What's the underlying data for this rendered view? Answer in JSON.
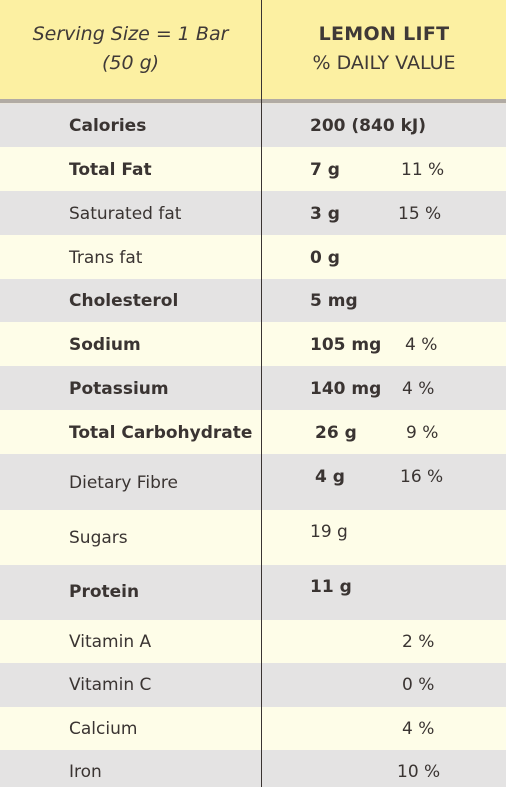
{
  "header": {
    "serving_line1": "Serving Size = 1 Bar",
    "serving_line2": "(50 g)",
    "product": "LEMON LIFT",
    "column_title": "% DAILY VALUE"
  },
  "rows": [
    {
      "label": "Calories",
      "amount": "200 (840 kJ)",
      "percent": ""
    },
    {
      "label": "Total Fat",
      "amount": "7 g",
      "percent": "11 %"
    },
    {
      "label": "Saturated fat",
      "amount": "3 g",
      "percent": "15 %"
    },
    {
      "label": "Trans fat",
      "amount": "0 g",
      "percent": ""
    },
    {
      "label": "Cholesterol",
      "amount": "5 mg",
      "percent": ""
    },
    {
      "label": "Sodium",
      "amount": "105 mg",
      "percent": "4 %"
    },
    {
      "label": "Potassium",
      "amount": "140 mg",
      "percent": "4 %"
    },
    {
      "label": "Total Carbohydrate",
      "amount": "26 g",
      "percent": "9 %"
    },
    {
      "label": "Dietary Fibre",
      "amount": "4 g",
      "percent": "16 %"
    },
    {
      "label": "Sugars",
      "amount": "19 g",
      "percent": ""
    },
    {
      "label": "Protein",
      "amount": "11 g",
      "percent": ""
    },
    {
      "label": "Vitamin A",
      "amount": "",
      "percent": "2 %"
    },
    {
      "label": "Vitamin C",
      "amount": "",
      "percent": "0 %"
    },
    {
      "label": "Calcium",
      "amount": "",
      "percent": "4 %"
    },
    {
      "label": "Iron",
      "amount": "",
      "percent": "10 %"
    }
  ]
}
